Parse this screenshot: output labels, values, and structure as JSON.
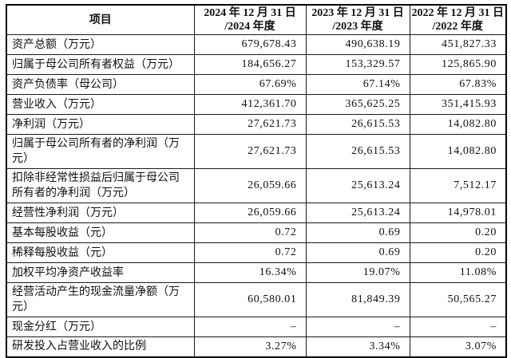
{
  "colors": {
    "background": "#ffffff",
    "border": "#000000",
    "text": "#111111"
  },
  "table": {
    "header": {
      "item_label": "项目",
      "periods": [
        {
          "line1": "2024 年 12 月 31 日",
          "line2": "/2024 年度"
        },
        {
          "line1": "2023 年 12 月 31 日",
          "line2": "/2023 年度"
        },
        {
          "line1": "2022 年 12 月 31 日",
          "line2": "/2022 年度"
        }
      ]
    },
    "rows": [
      {
        "label": "资产总额（万元）",
        "values": [
          "679,678.43",
          "490,638.19",
          "451,827.33"
        ]
      },
      {
        "label": "归属于母公司所有者权益（万元）",
        "values": [
          "184,656.27",
          "153,329.57",
          "125,865.90"
        ]
      },
      {
        "label": "资产负债率（母公司）",
        "values": [
          "67.69%",
          "67.14%",
          "67.83%"
        ]
      },
      {
        "label": "营业收入（万元）",
        "values": [
          "412,361.70",
          "365,625.25",
          "351,415.93"
        ]
      },
      {
        "label": "净利润（万元）",
        "values": [
          "27,621.73",
          "26,615.53",
          "14,082.80"
        ]
      },
      {
        "label": "归属于母公司所有者的净利润（万元）",
        "values": [
          "27,621.73",
          "26,615.53",
          "14,082.80"
        ]
      },
      {
        "label": "扣除非经常性损益后归属于母公司所有者的净利润（万元）",
        "values": [
          "26,059.66",
          "25,613.24",
          "7,512.17"
        ]
      },
      {
        "label": "经营性净利润（万元）",
        "values": [
          "26,059.66",
          "25,613.24",
          "14,978.01"
        ]
      },
      {
        "label": "基本每股收益（元）",
        "values": [
          "0.72",
          "0.69",
          "0.20"
        ]
      },
      {
        "label": "稀释每股收益（元）",
        "values": [
          "0.72",
          "0.69",
          "0.20"
        ]
      },
      {
        "label": "加权平均净资产收益率",
        "values": [
          "16.34%",
          "19.07%",
          "11.08%"
        ]
      },
      {
        "label": "经营活动产生的现金流量净额（万元）",
        "values": [
          "60,580.01",
          "81,849.39",
          "50,565.27"
        ]
      },
      {
        "label": "现金分红（万元）",
        "values": [
          "–",
          "–",
          "–"
        ]
      },
      {
        "label": "研发投入占营业收入的比例",
        "values": [
          "3.27%",
          "3.34%",
          "3.07%"
        ]
      }
    ]
  }
}
